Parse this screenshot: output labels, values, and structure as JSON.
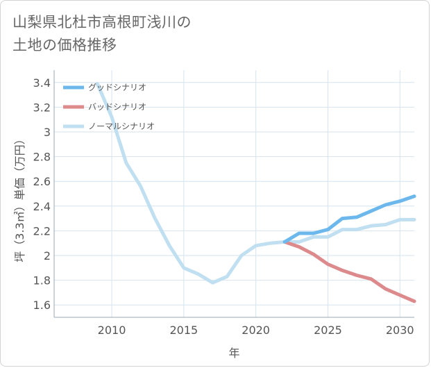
{
  "title_line1": "山梨県北杜市高根町浅川の",
  "title_line2": "土地の価格推移",
  "chart_data": {
    "type": "line",
    "title": "山梨県北杜市高根町浅川の土地の価格推移",
    "xlabel": "年",
    "ylabel": "坪（3.3㎡）単価（万円）",
    "xlim": [
      2006,
      2031
    ],
    "ylim": [
      1.5,
      3.5
    ],
    "xticks": [
      2010,
      2015,
      2020,
      2025,
      2030
    ],
    "yticks": [
      1.6,
      1.8,
      2,
      2.2,
      2.4,
      2.6,
      2.8,
      3,
      3.2,
      3.4
    ],
    "ytick_labels": [
      "1.6",
      "1.8",
      "2",
      "2.2",
      "2.4",
      "2.6",
      "2.8",
      "3",
      "3.2",
      "3.4"
    ],
    "grid": true,
    "legend_position": "top-left",
    "series": [
      {
        "name": "グッドシナリオ",
        "color": "#6cb8ec",
        "x": [
          2022,
          2023,
          2024,
          2025,
          2026,
          2027,
          2028,
          2029,
          2030,
          2031
        ],
        "y": [
          2.11,
          2.18,
          2.18,
          2.21,
          2.3,
          2.31,
          2.36,
          2.41,
          2.44,
          2.48
        ]
      },
      {
        "name": "バッドシナリオ",
        "color": "#dc8a8c",
        "x": [
          2022,
          2023,
          2024,
          2025,
          2026,
          2027,
          2028,
          2029,
          2030,
          2031
        ],
        "y": [
          2.11,
          2.07,
          2.01,
          1.93,
          1.88,
          1.84,
          1.81,
          1.73,
          1.68,
          1.63
        ]
      },
      {
        "name": "ノーマルシナリオ",
        "color": "#c0dff0",
        "x": [
          2009,
          2010,
          2011,
          2012,
          2013,
          2014,
          2015,
          2016,
          2017,
          2018,
          2019,
          2020,
          2021,
          2022,
          2023,
          2024,
          2025,
          2026,
          2027,
          2028,
          2029,
          2030,
          2031
        ],
        "y": [
          3.39,
          3.12,
          2.75,
          2.56,
          2.3,
          2.08,
          1.9,
          1.85,
          1.78,
          1.83,
          2.0,
          2.08,
          2.1,
          2.11,
          2.11,
          2.15,
          2.15,
          2.21,
          2.21,
          2.24,
          2.25,
          2.29,
          2.29
        ]
      }
    ]
  }
}
